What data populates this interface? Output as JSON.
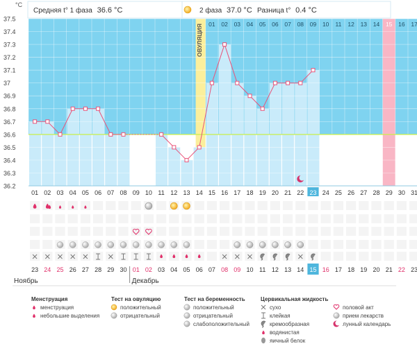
{
  "header": {
    "phase1_label": "Средняя t° 1 фаза",
    "phase1_value": "36.6 °C",
    "phase2_label": "2 фаза",
    "phase2_value": "37.0 °C",
    "diff_label": "Разница t°",
    "diff_value": "0.4 °C"
  },
  "chart_data": {
    "type": "line",
    "title": "",
    "ylabel": "°C",
    "ylim": [
      36.2,
      37.5
    ],
    "y_ticks": [
      "36.2",
      "36.3",
      "36.4",
      "36.5",
      "36.6",
      "36.7",
      "36.8",
      "36.9",
      "37",
      "37.1",
      "37.2",
      "37.3",
      "37.4",
      "37.5"
    ],
    "coverline": 36.6,
    "ovulation_label": "ОВУЛЯЦИЯ",
    "ovulation_after_day": 14,
    "cycle_days_top": [
      "01",
      "02",
      "03",
      "04",
      "05",
      "06",
      "07",
      "08",
      "09",
      "10",
      "11",
      "12",
      "13",
      "14",
      "15",
      "16",
      "17"
    ],
    "cycle_days": [
      "01",
      "02",
      "03",
      "04",
      "05",
      "06",
      "07",
      "08",
      "09",
      "10",
      "11",
      "12",
      "13",
      "14",
      "15",
      "16",
      "17",
      "18",
      "19",
      "20",
      "21",
      "22",
      "23",
      "24",
      "25",
      "26",
      "27",
      "28",
      "29",
      "30",
      "31"
    ],
    "highlight_cycle_day": "23",
    "highlight_top_day": "15",
    "temperatures": [
      36.7,
      36.7,
      36.6,
      36.8,
      36.8,
      36.8,
      36.6,
      36.6,
      null,
      null,
      36.6,
      36.5,
      36.4,
      36.5,
      37.0,
      37.3,
      37.0,
      36.9,
      36.8,
      37.0,
      37.0,
      37.0,
      37.1
    ],
    "dashed_segments": [
      [
        8,
        11
      ]
    ]
  },
  "calendar": {
    "dates": [
      "23",
      "24",
      "25",
      "26",
      "27",
      "28",
      "29",
      "30",
      "01",
      "02",
      "03",
      "04",
      "05",
      "06",
      "07",
      "08",
      "09",
      "10",
      "11",
      "12",
      "13",
      "14",
      "15",
      "16",
      "17",
      "18",
      "19",
      "20",
      "21",
      "22",
      "23"
    ],
    "red_dates": [
      "24",
      "25",
      "01",
      "02",
      "08",
      "09",
      "16",
      "22"
    ],
    "month1": "Ноябрь",
    "month2": "Декабрь"
  },
  "legend": {
    "groups": [
      {
        "title": "Менструация",
        "items": [
          "менструация",
          "небольшие выделения"
        ]
      },
      {
        "title": "Тест на овуляцию",
        "items": [
          "положительный",
          "отрицательный"
        ]
      },
      {
        "title": "Тест на беременность",
        "items": [
          "положительный",
          "отрицательный",
          "слабоположительный"
        ]
      },
      {
        "title": "Цервикальная жидкость",
        "items": [
          "сухо",
          "клейкая",
          "кремообразная",
          "водянистая",
          "яичный белок"
        ]
      },
      {
        "title": "",
        "items": [
          "половой акт",
          "прием лекарств",
          "лунный календарь"
        ]
      }
    ]
  },
  "colors": {
    "sky": "#7fd3f0",
    "bar": "#c9ebfa",
    "line": "#e8547a",
    "ovulation": "#fbef9c",
    "day29": "#f9b6c5",
    "coverline": "#c9ef4a"
  }
}
